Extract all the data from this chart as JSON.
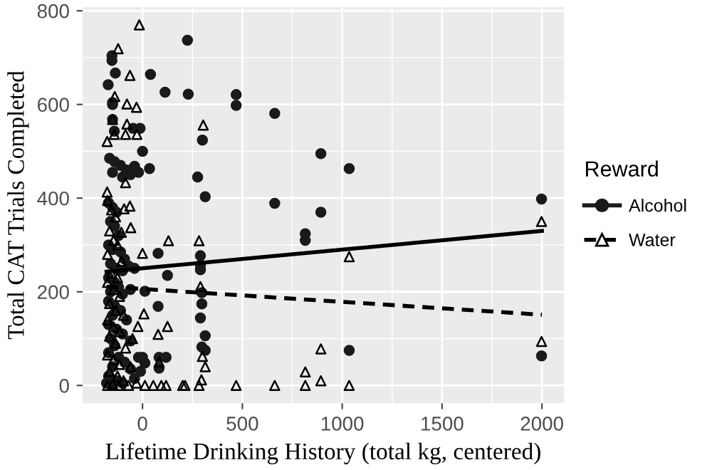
{
  "chart_data": {
    "type": "scatter",
    "xlabel": "Lifetime Drinking History (total kg, centered)",
    "ylabel": "Total CAT Trials Completed",
    "legend_title": "Reward",
    "xlim": [
      -300,
      2110
    ],
    "ylim": [
      -38,
      808
    ],
    "xticks": [
      0,
      500,
      1000,
      1500,
      2000
    ],
    "yticks": [
      0,
      200,
      400,
      600,
      800
    ],
    "grid": true,
    "legend": "right",
    "series": [
      {
        "name": "Alcohol",
        "type": "scatter",
        "marker": "circle",
        "color": "#1a1a1a",
        "x": [
          225,
          -153,
          -153,
          -136,
          40,
          -172,
          113,
          229,
          -150,
          -150,
          -150,
          -141,
          -47,
          -12,
          300,
          0,
          -165,
          -140,
          -110,
          -80,
          -40,
          -20,
          -150,
          -60,
          -100,
          35,
          276,
          314,
          78,
          290,
          290,
          290,
          125,
          297,
          12,
          78,
          297,
          290,
          314,
          297,
          314,
          83,
          118,
          83,
          0,
          12,
          469,
          469,
          662,
          893,
          1035,
          662,
          893,
          815,
          815,
          1998,
          1035,
          1998,
          -170,
          -150,
          -130,
          -160,
          -140,
          -120,
          -170,
          -150,
          -110,
          -90,
          -160,
          -130,
          -100,
          -70,
          -40,
          -170,
          -140,
          -120,
          -160,
          -100,
          -60,
          -170,
          -140,
          -110,
          -150,
          -80,
          -170,
          -130,
          -100,
          -160,
          -60,
          -140,
          -170,
          -120,
          -90,
          -150,
          -60,
          -170,
          -130,
          -100,
          -40,
          -20,
          -10,
          -150,
          -180
        ],
        "values": [
          737,
          704,
          694,
          667,
          664,
          642,
          626,
          622,
          604,
          600,
          568,
          543,
          549,
          549,
          524,
          500,
          485,
          478,
          470,
          460,
          468,
          455,
          455,
          450,
          445,
          463,
          445,
          403,
          282,
          277,
          257,
          247,
          235,
          198,
          201,
          169,
          174,
          144,
          106,
          82,
          75,
          60,
          60,
          37,
          60,
          48,
          621,
          598,
          581,
          495,
          463,
          389,
          370,
          324,
          310,
          398,
          75,
          63,
          390,
          380,
          370,
          350,
          340,
          320,
          300,
          290,
          285,
          270,
          260,
          250,
          245,
          255,
          250,
          230,
          220,
          210,
          200,
          195,
          205,
          180,
          170,
          160,
          150,
          140,
          130,
          120,
          110,
          100,
          95,
          85,
          70,
          60,
          50,
          40,
          35,
          20,
          10,
          5,
          15,
          60,
          30,
          0,
          5
        ]
      },
      {
        "name": "Water",
        "type": "scatter",
        "marker": "triangle",
        "color": "#000000",
        "x": [
          -16,
          -122,
          -63,
          -139,
          -78,
          -30,
          -150,
          -78,
          304,
          -141,
          -85,
          -28,
          -177,
          -177,
          -85,
          -92,
          -63,
          -59,
          -106,
          130,
          283,
          0,
          290,
          7,
          125,
          78,
          -23,
          300,
          314,
          83,
          12,
          54,
          94,
          118,
          201,
          213,
          283,
          295,
          469,
          662,
          815,
          893,
          1035,
          1998,
          1035,
          893,
          1998,
          815,
          -175,
          -155,
          -135,
          -165,
          -145,
          -125,
          -175,
          -105,
          -155,
          -125,
          -175,
          -145,
          -115,
          -165,
          -135,
          -95,
          -175,
          -145,
          -115,
          -165,
          -135,
          -85,
          -175,
          -145,
          -115,
          -165,
          -125,
          -95,
          -175,
          -150,
          -120,
          -70,
          -30,
          -50,
          -60
        ],
        "values": [
          770,
          719,
          662,
          617,
          601,
          594,
          568,
          558,
          556,
          536,
          536,
          536,
          521,
          413,
          433,
          377,
          383,
          337,
          327,
          309,
          309,
          282,
          211,
          153,
          126,
          109,
          126,
          62,
          40,
          50,
          0,
          0,
          0,
          0,
          0,
          0,
          0,
          12,
          0,
          0,
          0,
          10,
          0,
          350,
          275,
          78,
          94,
          29,
          395,
          375,
          360,
          330,
          310,
          300,
          280,
          265,
          240,
          230,
          220,
          205,
          190,
          175,
          160,
          150,
          140,
          125,
          115,
          105,
          90,
          80,
          65,
          55,
          45,
          30,
          20,
          10,
          0,
          3,
          0,
          0,
          5,
          100,
          40
        ]
      },
      {
        "type": "line",
        "line_style": "solid",
        "color": "#000000",
        "x": [
          -180,
          2000
        ],
        "values": [
          243,
          330
        ]
      },
      {
        "type": "line",
        "line_style": "dashed",
        "color": "#000000",
        "x": [
          -180,
          2000
        ],
        "values": [
          211,
          151
        ]
      }
    ]
  }
}
